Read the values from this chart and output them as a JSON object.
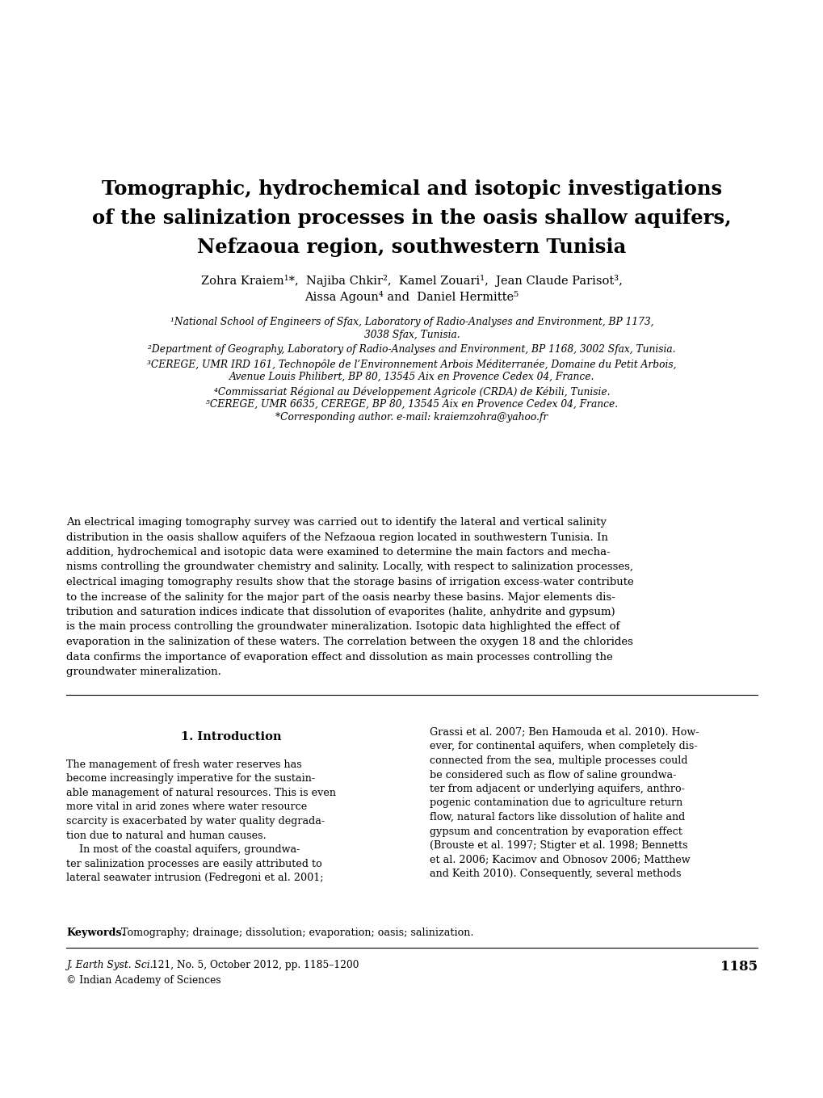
{
  "background_color": "#ffffff",
  "title_line1": "Tomographic, hydrochemical and isotopic investigations",
  "title_line2": "of the salinization processes in the oasis shallow aquifers,",
  "title_line3": "Nefzaoua region, southwestern Tunisia",
  "authors_line1": "Zohra Kraiem¹*,  Najiba Chkir²,  Kamel Zouari¹,  Jean Claude Parisot³,",
  "authors_line2": "Aissa Agoun⁴ and  Daniel Hermitte⁵",
  "affil1a": "¹National School of Engineers of Sfax, Laboratory of Radio-Analyses and Environment, BP 1173,",
  "affil1b": "3038 Sfax, Tunisia.",
  "affil2": "²Department of Geography, Laboratory of Radio-Analyses and Environment, BP 1168, 3002 Sfax, Tunisia.",
  "affil3a": "³CEREGE, UMR IRD 161, Technopôle de l’Environnement Arbois Méditerranée, Domaine du Petit Arbois,",
  "affil3b": "Avenue Louis Philibert, BP 80, 13545 Aix en Provence Cedex 04, France.",
  "affil4": "⁴Commissariat Régional au Développement Agricole (CRDA) de Kébili, Tunisie.",
  "affil5": "⁵CEREGE, UMR 6635, CEREGE, BP 80, 13545 Aix en Provence Cedex 04, France.",
  "affil6": "*Corresponding author. e-mail: kraiemzohra@yahoo.fr",
  "abstract": "An electrical imaging tomography survey was carried out to identify the lateral and vertical salinity distribution in the oasis shallow aquifers of the Nefzaoua region located in southwestern Tunisia. In addition, hydrochemical and isotopic data were examined to determine the main factors and mechanisms controlling the groundwater chemistry and salinity. Locally, with respect to salinization processes, electrical imaging tomography results show that the storage basins of irrigation excess-water contribute to the increase of the salinity for the major part of the oasis nearby these basins. Major elements distribution and saturation indices indicate that dissolution of evaporites (halite, anhydrite and gypsum) is the main process controlling the groundwater mineralization. Isotopic data highlighted the effect of evaporation in the salinization of these waters. The correlation between the oxygen 18 and the chlorides data confirms the importance of evaporation effect and dissolution as main processes controlling the groundwater mineralization.",
  "section_title": "1. Introduction",
  "left_col_text": "The management of fresh water reserves has become increasingly imperative for the sustainable management of natural resources. This is even more vital in arid zones where water resource scarcity is exacerbated by water quality degradation due to natural and human causes.\n    In most of the coastal aquifers, groundwater salinization processes are easily attributed to lateral seawater intrusion (Fedregoni et al. 2001;",
  "right_col_text": "Grassi et al. 2007; Ben Hamouda et al. 2010). However, for continental aquifers, when completely disconnected from the sea, multiple processes could be considered such as flow of saline groundwater from adjacent or underlying aquifers, anthropogenic contamination due to agriculture return flow, natural factors like dissolution of halite and gypsum and concentration by evaporation effect (Brouste et al. 1997; Stigter et al. 1998; Bennetts et al. 2006; Kacimov and Obnosov 2006; Matthew and Keith 2010). Consequently, several methods",
  "keywords_label": "Keywords.",
  "keywords_text": "Tomography; drainage; dissolution; evaporation; oasis; salinization.",
  "journal_line1": "J. Earth Syst. Sci.",
  "journal_line1b": " 121, No. 5, October 2012, pp. 1185–1200",
  "copyright_line": "© Indian Academy of Sciences",
  "page_number": "1185"
}
